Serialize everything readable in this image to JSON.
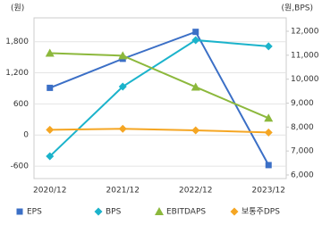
{
  "chart_data": {
    "type": "line",
    "y_label": "(원)",
    "y2_label": "(원,BPS)",
    "categories": [
      "2020/12",
      "2021/12",
      "2022/12",
      "2023/12"
    ],
    "ylim": [
      -840,
      2260
    ],
    "yticks": [
      {
        "value": -600,
        "label": "-600"
      },
      0,
      600,
      {
        "value": 1200,
        "label": "1,200"
      },
      {
        "value": 1800,
        "label": "1,800"
      }
    ],
    "y2lim": [
      5850,
      12560
    ],
    "y2ticks": [
      {
        "value": 6000,
        "label": "6,000"
      },
      {
        "value": 7000,
        "label": "7,000"
      },
      {
        "value": 8000,
        "label": "8,000"
      },
      {
        "value": 9000,
        "label": "9,000"
      },
      {
        "value": 10000,
        "label": "10,000"
      },
      {
        "value": 11000,
        "label": "11,000"
      },
      {
        "value": 12000,
        "label": "12,000"
      }
    ],
    "grid": true,
    "legend": "bottom",
    "series": [
      {
        "name": "EPS",
        "color": "#3b6fc6",
        "marker": "square",
        "values": [
          910,
          1470,
          1990,
          -580
        ]
      },
      {
        "name": "BPS",
        "color": "#1bb3cb",
        "marker": "diamond",
        "axis": "y2",
        "values": [
          6780,
          9690,
          11630,
          11370
        ]
      },
      {
        "name": "EBITDAPS",
        "color": "#8cb83c",
        "marker": "triangle",
        "values": [
          1580,
          1530,
          926,
          326
        ]
      },
      {
        "name": "보통주DPS",
        "color": "#f5a623",
        "marker": "diamond",
        "values": [
          100,
          120,
          90,
          50
        ]
      }
    ]
  }
}
